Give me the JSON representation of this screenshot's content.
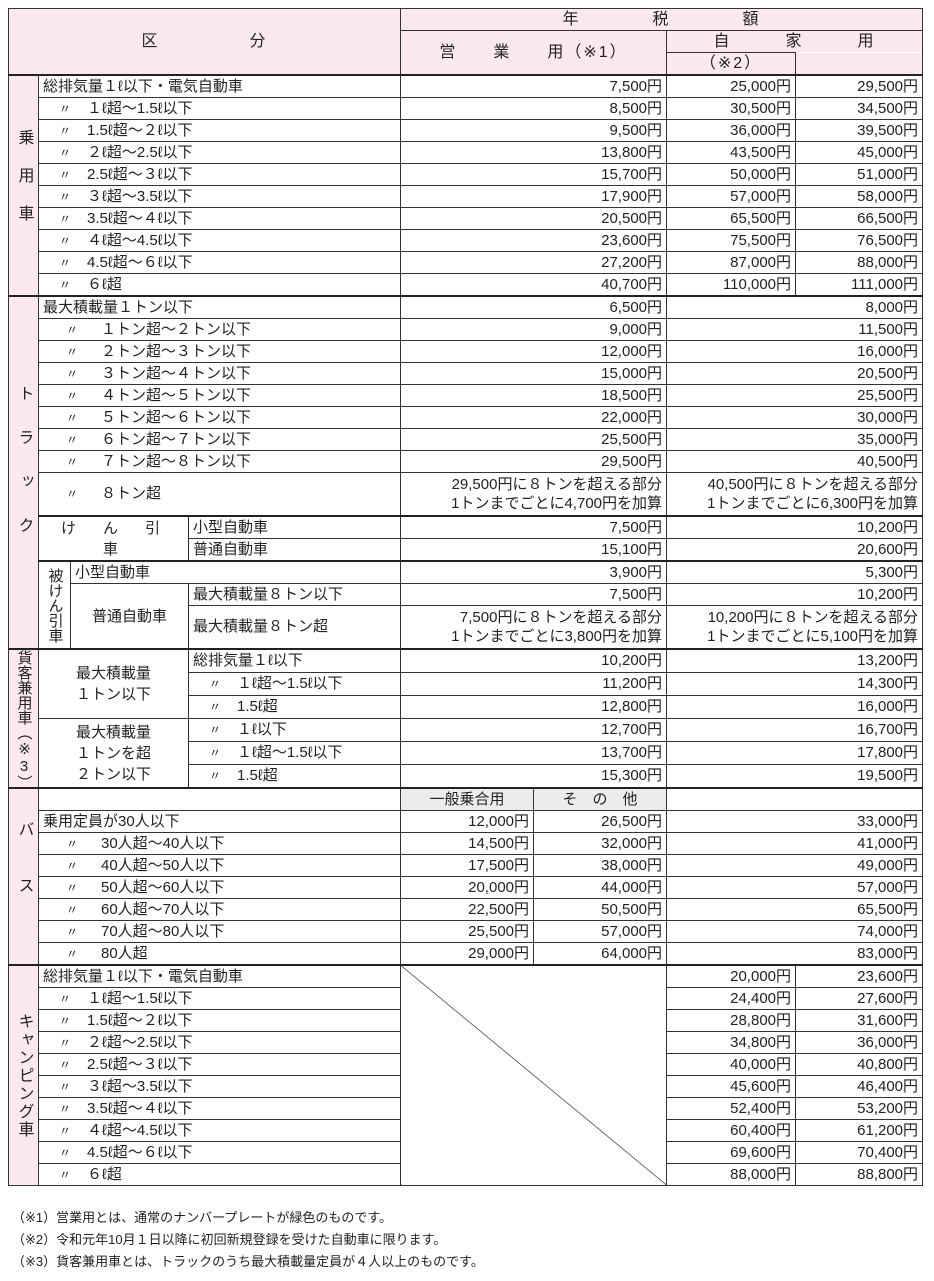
{
  "header": {
    "category": "区　　　　　分",
    "annual_tax": "年　　　　税　　　　額",
    "business": "営　　業　　用（※1）",
    "private": "自　　　家　　　用",
    "note2": "（※2）"
  },
  "ditto": "〃",
  "passenger": {
    "label": "乗用車",
    "rows": [
      {
        "ditto": false,
        "desc": "総排気量１ℓ以下・電気自動車",
        "business": "7,500円",
        "private_new": "25,000円",
        "private": "29,500円"
      },
      {
        "ditto": true,
        "desc": "１ℓ超〜1.5ℓ以下",
        "business": "8,500円",
        "private_new": "30,500円",
        "private": "34,500円"
      },
      {
        "ditto": true,
        "desc": "1.5ℓ超〜２ℓ以下",
        "business": "9,500円",
        "private_new": "36,000円",
        "private": "39,500円"
      },
      {
        "ditto": true,
        "desc": "２ℓ超〜2.5ℓ以下",
        "business": "13,800円",
        "private_new": "43,500円",
        "private": "45,000円"
      },
      {
        "ditto": true,
        "desc": "2.5ℓ超〜３ℓ以下",
        "business": "15,700円",
        "private_new": "50,000円",
        "private": "51,000円"
      },
      {
        "ditto": true,
        "desc": "３ℓ超〜3.5ℓ以下",
        "business": "17,900円",
        "private_new": "57,000円",
        "private": "58,000円"
      },
      {
        "ditto": true,
        "desc": "3.5ℓ超〜４ℓ以下",
        "business": "20,500円",
        "private_new": "65,500円",
        "private": "66,500円"
      },
      {
        "ditto": true,
        "desc": "４ℓ超〜4.5ℓ以下",
        "business": "23,600円",
        "private_new": "75,500円",
        "private": "76,500円"
      },
      {
        "ditto": true,
        "desc": "4.5ℓ超〜６ℓ以下",
        "business": "27,200円",
        "private_new": "87,000円",
        "private": "88,000円"
      },
      {
        "ditto": true,
        "desc": "６ℓ超",
        "business": "40,700円",
        "private_new": "110,000円",
        "private": "111,000円"
      }
    ]
  },
  "truck": {
    "label": "トラック",
    "rows": [
      {
        "ditto": false,
        "desc": "最大積載量１トン以下",
        "business": "6,500円",
        "private": "8,000円"
      },
      {
        "ditto": true,
        "desc": "１トン超〜２トン以下",
        "business": "9,000円",
        "private": "11,500円"
      },
      {
        "ditto": true,
        "desc": "２トン超〜３トン以下",
        "business": "12,000円",
        "private": "16,000円"
      },
      {
        "ditto": true,
        "desc": "３トン超〜４トン以下",
        "business": "15,000円",
        "private": "20,500円"
      },
      {
        "ditto": true,
        "desc": "４トン超〜５トン以下",
        "business": "18,500円",
        "private": "25,500円"
      },
      {
        "ditto": true,
        "desc": "５トン超〜６トン以下",
        "business": "22,000円",
        "private": "30,000円"
      },
      {
        "ditto": true,
        "desc": "６トン超〜７トン以下",
        "business": "25,500円",
        "private": "35,000円"
      },
      {
        "ditto": true,
        "desc": "７トン超〜８トン以下",
        "business": "29,500円",
        "private": "40,500円"
      },
      {
        "ditto": true,
        "desc": "８トン超",
        "business": "29,500円に８トンを超える部分\n1トンまでごとに4,700円を加算",
        "private": "40,500円に８トンを超える部分\n1トンまでごとに6,300円を加算"
      }
    ],
    "tractor": {
      "label": "け　ん　引　車",
      "rows": [
        {
          "desc": "小型自動車",
          "business": "7,500円",
          "private": "10,200円"
        },
        {
          "desc": "普通自動車",
          "business": "15,100円",
          "private": "20,600円"
        }
      ]
    },
    "trailer": {
      "label": "被けん引車",
      "small": {
        "desc": "小型自動車",
        "business": "3,900円",
        "private": "5,300円"
      },
      "regular_label": "普通自動車",
      "rows": [
        {
          "desc": "最大積載量８トン以下",
          "business": "7,500円",
          "private": "10,200円"
        },
        {
          "desc": "最大積載量８トン超",
          "business": "7,500円に８トンを超える部分\n1トンまでごとに3,800円を加算",
          "private": "10,200円に８トンを超える部分\n1トンまでごとに5,100円を加算"
        }
      ]
    }
  },
  "dual_use": {
    "label": "貨客兼用車（※3）",
    "groups": [
      {
        "label": "最大積載量\n１トン以下",
        "rows": [
          {
            "ditto": false,
            "desc": "総排気量１ℓ以下",
            "business": "10,200円",
            "private": "13,200円"
          },
          {
            "ditto": true,
            "desc": "１ℓ超〜1.5ℓ以下",
            "business": "11,200円",
            "private": "14,300円"
          },
          {
            "ditto": true,
            "desc": "1.5ℓ超",
            "business": "12,800円",
            "private": "16,000円"
          }
        ]
      },
      {
        "label": "最大積載量\n１トンを超\n２トン以下",
        "rows": [
          {
            "ditto": true,
            "desc": "１ℓ以下",
            "business": "12,700円",
            "private": "16,700円"
          },
          {
            "ditto": true,
            "desc": "１ℓ超〜1.5ℓ以下",
            "business": "13,700円",
            "private": "17,800円"
          },
          {
            "ditto": true,
            "desc": "1.5ℓ超",
            "business": "15,300円",
            "private": "19,500円"
          }
        ]
      }
    ]
  },
  "bus": {
    "label": "バス",
    "sub_general": "一般乗合用",
    "sub_other": "そ　の　他",
    "rows": [
      {
        "ditto": false,
        "desc": "乗用定員が30人以下",
        "general": "12,000円",
        "other": "26,500円",
        "private": "33,000円"
      },
      {
        "ditto": true,
        "desc": "30人超〜40人以下",
        "general": "14,500円",
        "other": "32,000円",
        "private": "41,000円"
      },
      {
        "ditto": true,
        "desc": "40人超〜50人以下",
        "general": "17,500円",
        "other": "38,000円",
        "private": "49,000円"
      },
      {
        "ditto": true,
        "desc": "50人超〜60人以下",
        "general": "20,000円",
        "other": "44,000円",
        "private": "57,000円"
      },
      {
        "ditto": true,
        "desc": "60人超〜70人以下",
        "general": "22,500円",
        "other": "50,500円",
        "private": "65,500円"
      },
      {
        "ditto": true,
        "desc": "70人超〜80人以下",
        "general": "25,500円",
        "other": "57,000円",
        "private": "74,000円"
      },
      {
        "ditto": true,
        "desc": "80人超",
        "general": "29,000円",
        "other": "64,000円",
        "private": "83,000円"
      }
    ]
  },
  "camper": {
    "label": "キャンピング車",
    "rows": [
      {
        "ditto": false,
        "desc": "総排気量１ℓ以下・電気自動車",
        "private_new": "20,000円",
        "private": "23,600円"
      },
      {
        "ditto": true,
        "desc": "１ℓ超〜1.5ℓ以下",
        "private_new": "24,400円",
        "private": "27,600円"
      },
      {
        "ditto": true,
        "desc": "1.5ℓ超〜２ℓ以下",
        "private_new": "28,800円",
        "private": "31,600円"
      },
      {
        "ditto": true,
        "desc": "２ℓ超〜2.5ℓ以下",
        "private_new": "34,800円",
        "private": "36,000円"
      },
      {
        "ditto": true,
        "desc": "2.5ℓ超〜３ℓ以下",
        "private_new": "40,000円",
        "private": "40,800円"
      },
      {
        "ditto": true,
        "desc": "３ℓ超〜3.5ℓ以下",
        "private_new": "45,600円",
        "private": "46,400円"
      },
      {
        "ditto": true,
        "desc": "3.5ℓ超〜４ℓ以下",
        "private_new": "52,400円",
        "private": "53,200円"
      },
      {
        "ditto": true,
        "desc": "４ℓ超〜4.5ℓ以下",
        "private_new": "60,400円",
        "private": "61,200円"
      },
      {
        "ditto": true,
        "desc": "4.5ℓ超〜６ℓ以下",
        "private_new": "69,600円",
        "private": "70,400円"
      },
      {
        "ditto": true,
        "desc": "６ℓ超",
        "private_new": "88,000円",
        "private": "88,800円"
      }
    ]
  },
  "footnotes": [
    "（※1）営業用とは、通常のナンバープレートが緑色のものです。",
    "（※2）令和元年10月１日以降に初回新規登録を受けた自動車に限ります。",
    "（※3）貨客兼用車とは、トラックのうち最大積載量定員が４人以上のものです。"
  ]
}
